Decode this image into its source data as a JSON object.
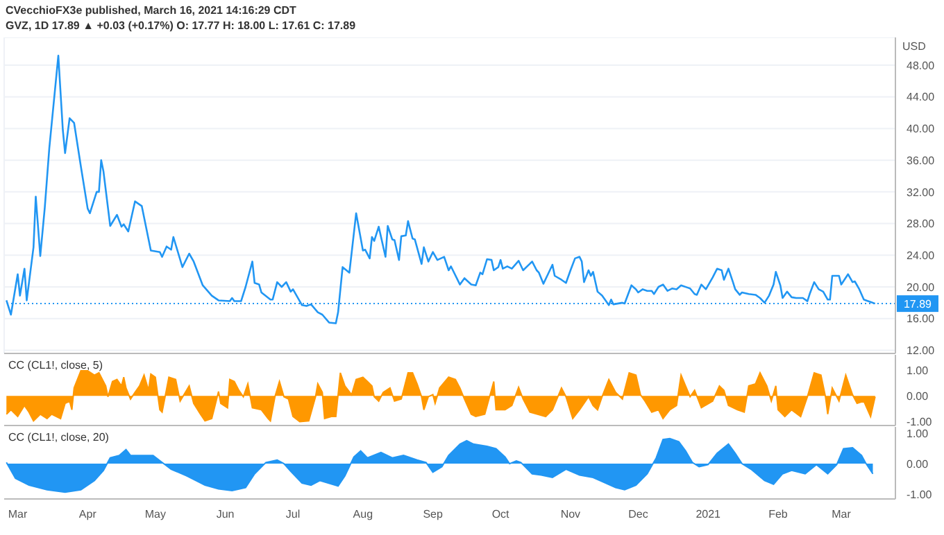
{
  "chart_data": [
    {
      "type": "line",
      "title": "CVecchioFX3e published, March 16, 2021 14:16:29 CDT",
      "subtitle": "GVZ, 1D 17.89 ▲ +0.03 (+0.17%) O: 17.77 H: 18.00 L: 17.61 C: 17.89",
      "ylabel": "USD",
      "color": "#2196f3",
      "x": [
        "2020-02-25",
        "2020-02-27",
        "2020-03-01",
        "2020-03-02",
        "2020-03-04",
        "2020-03-05",
        "2020-03-08",
        "2020-03-09",
        "2020-03-11",
        "2020-03-13",
        "2020-03-15",
        "2020-03-19",
        "2020-03-21",
        "2020-03-22",
        "2020-03-24",
        "2020-03-26",
        "2020-03-29",
        "2020-04-01",
        "2020-04-02",
        "2020-04-05",
        "2020-04-06",
        "2020-04-07",
        "2020-04-08",
        "2020-04-11",
        "2020-04-14",
        "2020-04-16",
        "2020-04-17",
        "2020-04-19",
        "2020-04-22",
        "2020-04-25",
        "2020-04-29",
        "2020-05-03",
        "2020-05-04",
        "2020-05-06",
        "2020-05-08",
        "2020-05-09",
        "2020-05-13",
        "2020-05-16",
        "2020-05-18",
        "2020-05-22",
        "2020-05-26",
        "2020-05-29",
        "2020-06-03",
        "2020-06-04",
        "2020-06-05",
        "2020-06-08",
        "2020-06-10",
        "2020-06-13",
        "2020-06-14",
        "2020-06-16",
        "2020-06-17",
        "2020-06-21",
        "2020-06-22",
        "2020-06-24",
        "2020-06-26",
        "2020-06-28",
        "2020-06-30",
        "2020-07-01",
        "2020-07-05",
        "2020-07-07",
        "2020-07-09",
        "2020-07-12",
        "2020-07-14",
        "2020-07-17",
        "2020-07-20",
        "2020-07-21",
        "2020-07-23",
        "2020-07-26",
        "2020-07-29",
        "2020-08-01",
        "2020-08-02",
        "2020-08-04",
        "2020-08-05",
        "2020-08-06",
        "2020-08-08",
        "2020-08-11",
        "2020-08-12",
        "2020-08-14",
        "2020-08-15",
        "2020-08-17",
        "2020-08-18",
        "2020-08-20",
        "2020-08-21",
        "2020-08-23",
        "2020-08-24",
        "2020-08-27",
        "2020-08-28",
        "2020-08-30",
        "2020-09-01",
        "2020-09-03",
        "2020-09-06",
        "2020-09-08",
        "2020-09-09",
        "2020-09-13",
        "2020-09-15",
        "2020-09-18",
        "2020-09-20",
        "2020-09-22",
        "2020-09-23",
        "2020-09-25",
        "2020-09-27",
        "2020-09-28",
        "2020-09-30",
        "2020-10-01",
        "2020-10-02",
        "2020-10-04",
        "2020-10-06",
        "2020-10-09",
        "2020-10-11",
        "2020-10-15",
        "2020-10-17",
        "2020-10-18",
        "2020-10-20",
        "2020-10-22",
        "2020-10-24",
        "2020-10-25",
        "2020-10-28",
        "2020-10-30",
        "2020-11-01",
        "2020-11-03",
        "2020-11-05",
        "2020-11-06",
        "2020-11-07",
        "2020-11-09",
        "2020-11-10",
        "2020-11-11",
        "2020-11-13",
        "2020-11-15",
        "2020-11-18",
        "2020-11-19",
        "2020-11-20",
        "2020-11-24",
        "2020-11-25",
        "2020-11-28",
        "2020-11-30",
        "2020-12-01",
        "2020-12-03",
        "2020-12-05",
        "2020-12-07",
        "2020-12-08",
        "2020-12-10",
        "2020-12-12",
        "2020-12-14",
        "2020-12-16",
        "2020-12-18",
        "2020-12-20",
        "2020-12-23",
        "2020-12-24",
        "2020-12-26",
        "2020-12-27",
        "2020-12-29",
        "2020-12-31",
        "2021-01-03",
        "2021-01-05",
        "2021-01-07",
        "2021-01-08",
        "2021-01-10",
        "2021-01-12",
        "2021-01-13",
        "2021-01-15",
        "2021-01-16",
        "2021-01-19",
        "2021-01-22",
        "2021-01-24",
        "2021-01-26",
        "2021-01-28",
        "2021-01-30",
        "2021-01-31",
        "2021-02-02",
        "2021-02-03",
        "2021-02-05",
        "2021-02-07",
        "2021-02-09",
        "2021-02-12",
        "2021-02-14",
        "2021-02-15",
        "2021-02-17",
        "2021-02-19",
        "2021-02-21",
        "2021-02-23",
        "2021-02-24",
        "2021-02-25",
        "2021-02-28",
        "2021-03-01",
        "2021-03-04",
        "2021-03-06",
        "2021-03-07",
        "2021-03-09",
        "2021-03-11",
        "2021-03-12",
        "2021-03-14",
        "2021-03-16"
      ],
      "values": [
        18.3,
        16.5,
        21.6,
        18.9,
        22.3,
        18.3,
        25.0,
        31.4,
        23.9,
        30.0,
        37.5,
        49.2,
        39.8,
        36.9,
        41.3,
        40.7,
        35.2,
        29.9,
        29.3,
        32.0,
        32.0,
        36.0,
        34.6,
        27.7,
        29.1,
        27.6,
        27.9,
        27.0,
        30.8,
        30.2,
        24.6,
        24.4,
        23.8,
        25.1,
        24.7,
        26.3,
        22.5,
        24.2,
        23.2,
        20.2,
        18.9,
        18.3,
        18.2,
        18.6,
        18.2,
        18.2,
        20.0,
        23.2,
        20.5,
        20.3,
        19.3,
        18.4,
        18.4,
        20.6,
        20.0,
        20.6,
        19.4,
        19.7,
        17.7,
        17.6,
        17.8,
        16.8,
        16.5,
        15.5,
        15.4,
        16.8,
        22.5,
        21.8,
        29.3,
        24.6,
        24.7,
        23.6,
        26.3,
        25.8,
        27.6,
        23.8,
        27.7,
        26.0,
        25.9,
        23.4,
        26.4,
        26.5,
        28.3,
        26.1,
        26.0,
        22.9,
        25.0,
        23.2,
        24.4,
        23.4,
        23.8,
        22.1,
        22.6,
        20.3,
        21.1,
        20.3,
        20.2,
        21.8,
        21.6,
        23.5,
        23.4,
        22.1,
        22.5,
        23.4,
        22.3,
        22.6,
        22.3,
        23.3,
        22.1,
        23.2,
        22.1,
        21.8,
        20.4,
        21.6,
        22.8,
        21.4,
        20.9,
        20.5,
        22.1,
        23.6,
        23.8,
        23.2,
        20.6,
        22.1,
        21.4,
        21.9,
        19.4,
        18.9,
        17.7,
        18.4,
        17.8,
        18.0,
        17.9,
        20.2,
        19.7,
        19.3,
        19.7,
        19.5,
        19.5,
        19.1,
        20.0,
        20.3,
        19.5,
        19.8,
        19.7,
        20.2,
        19.9,
        19.8,
        19.1,
        19.0,
        20.3,
        19.7,
        21.2,
        22.3,
        22.1,
        20.9,
        22.3,
        20.6,
        19.7,
        19.0,
        19.3,
        19.1,
        19.0,
        18.6,
        18.0,
        18.9,
        20.3,
        21.9,
        20.2,
        18.6,
        19.4,
        18.7,
        18.6,
        18.6,
        18.2,
        19.1,
        20.6,
        19.7,
        19.4,
        18.4,
        18.4,
        21.4,
        21.4,
        20.3,
        21.6,
        20.6,
        20.7,
        19.7,
        18.4,
        18.3,
        18.1,
        17.89
      ],
      "xlim": [
        "2020-02-24",
        "2021-03-25"
      ],
      "ylim": [
        11.6,
        51.5
      ],
      "yticks": [
        {
          "value": 12,
          "label": "12.00"
        },
        {
          "value": 16,
          "label": "16.00"
        },
        {
          "value": 20,
          "label": "20.00"
        },
        {
          "value": 24,
          "label": "24.00"
        },
        {
          "value": 28,
          "label": "28.00"
        },
        {
          "value": 32,
          "label": "32.00"
        },
        {
          "value": 36,
          "label": "36.00"
        },
        {
          "value": 40,
          "label": "40.00"
        },
        {
          "value": 44,
          "label": "44.00"
        },
        {
          "value": 48,
          "label": "48.00"
        }
      ],
      "tick_labels": "y",
      "grid": true,
      "ref_lines": [
        {
          "axis": "y",
          "value": 17.89,
          "label": "17.89",
          "color": "#2196f3",
          "line_style": "dotted"
        }
      ]
    },
    {
      "type": "area",
      "title": "CC (CL1!, close, 5)",
      "color": "#ff9800",
      "x": [
        "2020-02-25",
        "2020-02-27",
        "2020-03-01",
        "2020-03-04",
        "2020-03-06",
        "2020-03-08",
        "2020-03-11",
        "2020-03-14",
        "2020-03-16",
        "2020-03-20",
        "2020-03-22",
        "2020-03-24",
        "2020-03-25",
        "2020-03-26",
        "2020-03-29",
        "2020-04-01",
        "2020-04-04",
        "2020-04-06",
        "2020-04-09",
        "2020-04-10",
        "2020-04-12",
        "2020-04-14",
        "2020-04-16",
        "2020-04-17",
        "2020-04-18",
        "2020-04-20",
        "2020-04-22",
        "2020-04-24",
        "2020-04-26",
        "2020-04-28",
        "2020-04-29",
        "2020-05-01",
        "2020-05-03",
        "2020-05-04",
        "2020-05-07",
        "2020-05-10",
        "2020-05-11",
        "2020-05-12",
        "2020-05-16",
        "2020-05-18",
        "2020-05-21",
        "2020-05-23",
        "2020-05-26",
        "2020-05-27",
        "2020-05-29",
        "2020-05-30",
        "2020-06-02",
        "2020-06-03",
        "2020-06-05",
        "2020-06-07",
        "2020-06-09",
        "2020-06-11",
        "2020-06-13",
        "2020-06-17",
        "2020-06-20",
        "2020-06-21",
        "2020-06-23",
        "2020-06-25",
        "2020-06-27",
        "2020-06-29",
        "2020-07-01",
        "2020-07-04",
        "2020-07-08",
        "2020-07-11",
        "2020-07-12",
        "2020-07-14",
        "2020-07-15",
        "2020-07-18",
        "2020-07-20",
        "2020-07-22",
        "2020-07-24",
        "2020-07-27",
        "2020-07-29",
        "2020-08-01",
        "2020-08-03",
        "2020-08-05",
        "2020-08-06",
        "2020-08-08",
        "2020-08-10",
        "2020-08-13",
        "2020-08-15",
        "2020-08-18",
        "2020-08-21",
        "2020-08-23",
        "2020-08-25",
        "2020-08-27",
        "2020-08-28",
        "2020-08-30",
        "2020-09-01",
        "2020-09-02",
        "2020-09-04",
        "2020-09-08",
        "2020-09-11",
        "2020-09-13",
        "2020-09-15",
        "2020-09-18",
        "2020-09-20",
        "2020-09-24",
        "2020-09-28",
        "2020-09-29",
        "2020-10-03",
        "2020-10-06",
        "2020-10-09",
        "2020-10-11",
        "2020-10-14",
        "2020-10-21",
        "2020-10-24",
        "2020-10-28",
        "2020-10-30",
        "2020-11-02",
        "2020-11-05",
        "2020-11-09",
        "2020-11-11",
        "2020-11-13",
        "2020-11-15",
        "2020-11-18",
        "2020-11-21",
        "2020-11-24",
        "2020-11-27",
        "2020-11-30",
        "2020-12-02",
        "2020-12-04",
        "2020-12-07",
        "2020-12-10",
        "2020-12-12",
        "2020-12-15",
        "2020-12-18",
        "2020-12-20",
        "2020-12-22",
        "2020-12-24",
        "2020-12-26",
        "2020-12-29",
        "2021-01-03",
        "2021-01-06",
        "2021-01-08",
        "2021-01-10",
        "2021-01-14",
        "2021-01-17",
        "2021-01-19",
        "2021-01-22",
        "2021-01-24",
        "2021-01-27",
        "2021-01-29",
        "2021-01-31",
        "2021-02-01",
        "2021-02-04",
        "2021-02-07",
        "2021-02-11",
        "2021-02-14",
        "2021-02-17",
        "2021-02-20",
        "2021-02-22",
        "2021-02-23",
        "2021-02-25",
        "2021-02-28",
        "2021-03-03",
        "2021-03-06",
        "2021-03-08",
        "2021-03-11",
        "2021-03-14",
        "2021-03-16"
      ],
      "values": [
        -0.71,
        -0.54,
        -0.8,
        -0.37,
        -0.63,
        -0.97,
        -0.71,
        -0.88,
        -0.71,
        -0.88,
        -0.29,
        -0.2,
        -0.54,
        0.31,
        0.98,
        0.98,
        0.81,
        0.9,
        0.39,
        -0.03,
        0.56,
        0.64,
        0.39,
        0.73,
        0.31,
        -0.12,
        0.14,
        0.39,
        0.81,
        0.22,
        0.85,
        0.73,
        -0.54,
        -0.63,
        0.73,
        0.64,
        0.22,
        -0.2,
        0.39,
        -0.29,
        -0.71,
        -0.97,
        -0.88,
        -0.54,
        0.17,
        -0.29,
        -0.46,
        0.64,
        0.56,
        0.22,
        -0.03,
        0.47,
        -0.46,
        -0.54,
        -0.88,
        -0.97,
        -0.03,
        0.56,
        -0.03,
        -0.12,
        -0.8,
        -1.0,
        -0.97,
        -0.03,
        0.47,
        0.14,
        -0.88,
        -0.8,
        -0.8,
        0.9,
        0.39,
        0.05,
        0.64,
        0.73,
        0.56,
        0.39,
        -0.03,
        -0.2,
        0.14,
        0.31,
        -0.2,
        -0.12,
        0.9,
        0.9,
        0.47,
        -0.03,
        -0.54,
        -0.03,
        0.05,
        -0.29,
        0.31,
        0.73,
        0.64,
        0.31,
        -0.12,
        -0.71,
        -0.8,
        -0.71,
        0.56,
        -0.54,
        -0.54,
        -0.37,
        0.34,
        -0.12,
        -0.63,
        -0.8,
        -0.54,
        0.31,
        -0.03,
        -0.88,
        -0.54,
        -0.03,
        -0.37,
        -0.54,
        -0.03,
        0.64,
        0.14,
        -0.12,
        0.9,
        0.81,
        0.05,
        -0.2,
        -0.63,
        -0.54,
        -0.88,
        -0.54,
        -0.37,
        0.81,
        0.39,
        -0.03,
        0.22,
        -0.46,
        -0.2,
        0.39,
        0.22,
        -0.37,
        -0.54,
        -0.63,
        0.39,
        0.47,
        0.9,
        0.39,
        -0.2,
        0.39,
        -0.54,
        -0.8,
        -0.54,
        -0.8,
        -0.03,
        0.9,
        0.81,
        -0.03,
        -0.71,
        0.31,
        -0.2,
        0.81,
        0.05,
        -0.29,
        -0.2,
        -0.8,
        -0.03
      ],
      "xlim": [
        "2020-02-24",
        "2021-03-25"
      ],
      "ylim": [
        -1.15,
        1.6
      ],
      "yticks": [
        {
          "value": -1,
          "label": "-1.00"
        },
        {
          "value": 0,
          "label": "0.00"
        },
        {
          "value": 1,
          "label": "1.00"
        }
      ],
      "tick_labels": "y"
    },
    {
      "type": "area",
      "title": "CC (CL1!, close, 20)",
      "color": "#2196f3",
      "x": [
        "2020-02-25",
        "2020-02-29",
        "2020-03-06",
        "2020-03-14",
        "2020-03-22",
        "2020-03-29",
        "2020-04-04",
        "2020-04-08",
        "2020-04-11",
        "2020-04-15",
        "2020-04-18",
        "2020-04-20",
        "2020-04-30",
        "2020-05-04",
        "2020-05-08",
        "2020-05-15",
        "2020-05-23",
        "2020-05-29",
        "2020-06-04",
        "2020-06-10",
        "2020-06-14",
        "2020-06-19",
        "2020-06-24",
        "2020-06-27",
        "2020-06-30",
        "2020-07-05",
        "2020-07-09",
        "2020-07-13",
        "2020-07-21",
        "2020-07-24",
        "2020-07-28",
        "2020-07-31",
        "2020-08-03",
        "2020-08-09",
        "2020-08-14",
        "2020-08-19",
        "2020-08-25",
        "2020-08-29",
        "2020-09-01",
        "2020-09-05",
        "2020-09-08",
        "2020-09-13",
        "2020-09-16",
        "2020-09-19",
        "2020-09-25",
        "2020-09-29",
        "2020-10-03",
        "2020-10-05",
        "2020-10-08",
        "2020-10-10",
        "2020-10-15",
        "2020-10-19",
        "2020-10-24",
        "2020-10-30",
        "2020-11-05",
        "2020-11-11",
        "2020-11-15",
        "2020-11-21",
        "2020-11-25",
        "2020-11-30",
        "2020-12-05",
        "2020-12-09",
        "2020-12-12",
        "2020-12-15",
        "2020-12-19",
        "2020-12-22",
        "2020-12-25",
        "2020-12-28",
        "2021-01-01",
        "2021-01-05",
        "2021-01-10",
        "2021-01-13",
        "2021-01-16",
        "2021-01-20",
        "2021-01-26",
        "2021-01-30",
        "2021-02-03",
        "2021-02-07",
        "2021-02-13",
        "2021-02-18",
        "2021-02-23",
        "2021-02-27",
        "2021-03-02",
        "2021-03-06",
        "2021-03-10",
        "2021-03-12",
        "2021-03-15"
      ],
      "values": [
        0.04,
        -0.48,
        -0.7,
        -0.85,
        -0.93,
        -0.85,
        -0.55,
        -0.22,
        0.19,
        0.27,
        0.46,
        0.27,
        0.27,
        0.04,
        -0.18,
        -0.4,
        -0.7,
        -0.82,
        -0.88,
        -0.78,
        -0.33,
        0.04,
        0.12,
        0.0,
        -0.25,
        -0.63,
        -0.7,
        -0.55,
        -0.73,
        -0.4,
        0.22,
        0.42,
        0.19,
        0.37,
        0.19,
        0.27,
        0.12,
        0.04,
        -0.28,
        -0.1,
        0.27,
        0.64,
        0.75,
        0.64,
        0.57,
        0.49,
        0.22,
        0.0,
        0.09,
        0.04,
        -0.33,
        -0.37,
        -0.45,
        -0.18,
        -0.37,
        -0.45,
        -0.58,
        -0.78,
        -0.85,
        -0.7,
        -0.33,
        0.19,
        0.79,
        0.82,
        0.72,
        0.42,
        0.04,
        -0.1,
        -0.03,
        0.34,
        0.64,
        0.34,
        0.0,
        -0.18,
        -0.55,
        -0.67,
        -0.33,
        -0.22,
        -0.33,
        -0.03,
        -0.33,
        -0.03,
        0.49,
        0.52,
        0.27,
        0.0,
        -0.33
      ],
      "xlim": [
        "2020-02-24",
        "2021-03-25"
      ],
      "xticks": [
        {
          "value": "2020-03-01",
          "label": "Mar"
        },
        {
          "value": "2020-04-01",
          "label": "Apr"
        },
        {
          "value": "2020-05-01",
          "label": "May"
        },
        {
          "value": "2020-06-01",
          "label": "Jun"
        },
        {
          "value": "2020-07-01",
          "label": "Jul"
        },
        {
          "value": "2020-08-01",
          "label": "Aug"
        },
        {
          "value": "2020-09-01",
          "label": "Sep"
        },
        {
          "value": "2020-10-01",
          "label": "Oct"
        },
        {
          "value": "2020-11-01",
          "label": "Nov"
        },
        {
          "value": "2020-12-01",
          "label": "Dec"
        },
        {
          "value": "2021-01-01",
          "label": "2021"
        },
        {
          "value": "2021-02-01",
          "label": "Feb"
        },
        {
          "value": "2021-03-01",
          "label": "Mar"
        }
      ],
      "ylim": [
        -1.15,
        1.2
      ],
      "yticks": [
        {
          "value": -1,
          "label": "-1.00"
        },
        {
          "value": 0,
          "label": "0.00"
        },
        {
          "value": 1,
          "label": "1.00"
        }
      ]
    }
  ]
}
